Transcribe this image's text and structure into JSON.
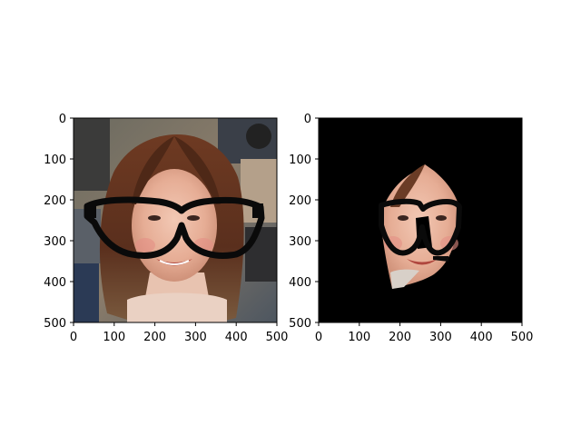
{
  "figure": {
    "background_color": "#ffffff",
    "panels": [
      {
        "name": "photo-with-glasses",
        "x_ticks": [
          "0",
          "100",
          "200",
          "300",
          "400",
          "500"
        ],
        "y_ticks": [
          "0",
          "100",
          "200",
          "300",
          "400",
          "500"
        ],
        "image_description": "woman with long auburn hair wearing thick black glasses overlay, crowd background"
      },
      {
        "name": "masked-face-with-glasses",
        "x_ticks": [
          "0",
          "100",
          "200",
          "300",
          "400",
          "500"
        ],
        "y_ticks": [
          "0",
          "100",
          "200",
          "300",
          "400",
          "500"
        ],
        "background_color": "#000000",
        "image_description": "face region isolated on black background with glasses overlay"
      }
    ]
  }
}
